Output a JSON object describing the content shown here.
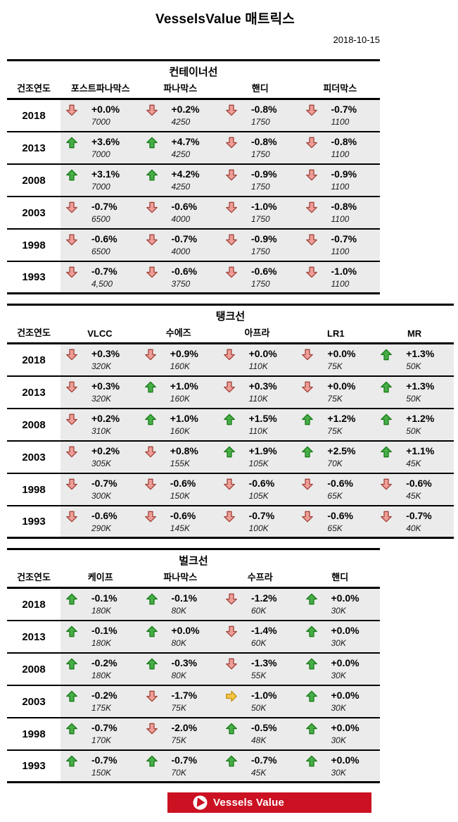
{
  "page": {
    "title": "VesselsValue 매트릭스",
    "date": "2018-10-15"
  },
  "labels": {
    "year_column": "건조연도"
  },
  "footer": {
    "brand": "Vessels Value"
  },
  "colors": {
    "row_bg": "#ebebeb",
    "brand_red": "#cb1122",
    "arrow_up": {
      "fill": "#47ad47",
      "stroke": "#187a18"
    },
    "arrow_down": {
      "fill": "#ee9e97",
      "stroke": "#a1423a"
    },
    "arrow_right": {
      "fill": "#f6c544",
      "stroke": "#c39016"
    }
  },
  "tables": [
    {
      "title": "컨테이너선",
      "wide": false,
      "columns": [
        "포스트파나막스",
        "파나막스",
        "핸디",
        "피더막스"
      ],
      "rows": [
        {
          "year": "2018",
          "cells": [
            [
              "down",
              "+0.0%",
              "7000"
            ],
            [
              "down",
              "+0.2%",
              "4250"
            ],
            [
              "down",
              "-0.8%",
              "1750"
            ],
            [
              "down",
              "-0.7%",
              "1100"
            ]
          ]
        },
        {
          "year": "2013",
          "cells": [
            [
              "up",
              "+3.6%",
              "7000"
            ],
            [
              "up",
              "+4.7%",
              "4250"
            ],
            [
              "down",
              "-0.8%",
              "1750"
            ],
            [
              "down",
              "-0.8%",
              "1100"
            ]
          ]
        },
        {
          "year": "2008",
          "cells": [
            [
              "up",
              "+3.1%",
              "7000"
            ],
            [
              "up",
              "+4.2%",
              "4250"
            ],
            [
              "down",
              "-0.9%",
              "1750"
            ],
            [
              "down",
              "-0.9%",
              "1100"
            ]
          ]
        },
        {
          "year": "2003",
          "cells": [
            [
              "down",
              "-0.7%",
              "6500"
            ],
            [
              "down",
              "-0.6%",
              "4000"
            ],
            [
              "down",
              "-1.0%",
              "1750"
            ],
            [
              "down",
              "-0.8%",
              "1100"
            ]
          ]
        },
        {
          "year": "1998",
          "cells": [
            [
              "down",
              "-0.6%",
              "6500"
            ],
            [
              "down",
              "-0.7%",
              "4000"
            ],
            [
              "down",
              "-0.9%",
              "1750"
            ],
            [
              "down",
              "-0.7%",
              "1100"
            ]
          ]
        },
        {
          "year": "1993",
          "cells": [
            [
              "down",
              "-0.7%",
              "4,500"
            ],
            [
              "down",
              "-0.6%",
              "3750"
            ],
            [
              "down",
              "-0.6%",
              "1750"
            ],
            [
              "down",
              "-1.0%",
              "1100"
            ]
          ]
        }
      ]
    },
    {
      "title": "탱크선",
      "wide": true,
      "columns": [
        "VLCC",
        "수에즈",
        "아프라",
        "LR1",
        "MR"
      ],
      "rows": [
        {
          "year": "2018",
          "cells": [
            [
              "down",
              "+0.3%",
              "320K"
            ],
            [
              "down",
              "+0.9%",
              "160K"
            ],
            [
              "down",
              "+0.0%",
              "110K"
            ],
            [
              "down",
              "+0.0%",
              "75K"
            ],
            [
              "up",
              "+1.3%",
              "50K"
            ]
          ]
        },
        {
          "year": "2013",
          "cells": [
            [
              "down",
              "+0.3%",
              "320K"
            ],
            [
              "up",
              "+1.0%",
              "160K"
            ],
            [
              "down",
              "+0.3%",
              "110K"
            ],
            [
              "down",
              "+0.0%",
              "75K"
            ],
            [
              "up",
              "+1.3%",
              "50K"
            ]
          ]
        },
        {
          "year": "2008",
          "cells": [
            [
              "down",
              "+0.2%",
              "310K"
            ],
            [
              "up",
              "+1.0%",
              "160K"
            ],
            [
              "up",
              "+1.5%",
              "110K"
            ],
            [
              "up",
              "+1.2%",
              "75K"
            ],
            [
              "up",
              "+1.2%",
              "50K"
            ]
          ]
        },
        {
          "year": "2003",
          "cells": [
            [
              "down",
              "+0.2%",
              "305K"
            ],
            [
              "down",
              "+0.8%",
              "155K"
            ],
            [
              "up",
              "+1.9%",
              "105K"
            ],
            [
              "up",
              "+2.5%",
              "70K"
            ],
            [
              "up",
              "+1.1%",
              "45K"
            ]
          ]
        },
        {
          "year": "1998",
          "cells": [
            [
              "down",
              "-0.7%",
              "300K"
            ],
            [
              "down",
              "-0.6%",
              "150K"
            ],
            [
              "down",
              "-0.6%",
              "105K"
            ],
            [
              "down",
              "-0.6%",
              "65K"
            ],
            [
              "down",
              "-0.6%",
              "45K"
            ]
          ]
        },
        {
          "year": "1993",
          "cells": [
            [
              "down",
              "-0.6%",
              "290K"
            ],
            [
              "down",
              "-0.6%",
              "145K"
            ],
            [
              "down",
              "-0.7%",
              "100K"
            ],
            [
              "down",
              "-0.6%",
              "65K"
            ],
            [
              "down",
              "-0.7%",
              "40K"
            ]
          ]
        }
      ]
    },
    {
      "title": "벌크선",
      "wide": false,
      "columns": [
        "케이프",
        "파나막스",
        "수프라",
        "핸디"
      ],
      "rows": [
        {
          "year": "2018",
          "cells": [
            [
              "up",
              "-0.1%",
              "180K"
            ],
            [
              "up",
              "-0.1%",
              "80K"
            ],
            [
              "down",
              "-1.2%",
              "60K"
            ],
            [
              "up",
              "+0.0%",
              "30K"
            ]
          ]
        },
        {
          "year": "2013",
          "cells": [
            [
              "up",
              "-0.1%",
              "180K"
            ],
            [
              "up",
              "+0.0%",
              "80K"
            ],
            [
              "down",
              "-1.4%",
              "60K"
            ],
            [
              "up",
              "+0.0%",
              "30K"
            ]
          ]
        },
        {
          "year": "2008",
          "cells": [
            [
              "up",
              "-0.2%",
              "180K"
            ],
            [
              "up",
              "-0.3%",
              "80K"
            ],
            [
              "down",
              "-1.3%",
              "55K"
            ],
            [
              "up",
              "+0.0%",
              "30K"
            ]
          ]
        },
        {
          "year": "2003",
          "cells": [
            [
              "up",
              "-0.2%",
              "175K"
            ],
            [
              "down",
              "-1.7%",
              "75K"
            ],
            [
              "right",
              "-1.0%",
              "50K"
            ],
            [
              "up",
              "+0.0%",
              "30K"
            ]
          ]
        },
        {
          "year": "1998",
          "cells": [
            [
              "up",
              "-0.7%",
              "170K"
            ],
            [
              "down",
              "-2.0%",
              "75K"
            ],
            [
              "up",
              "-0.5%",
              "48K"
            ],
            [
              "up",
              "+0.0%",
              "30K"
            ]
          ]
        },
        {
          "year": "1993",
          "cells": [
            [
              "up",
              "-0.7%",
              "150K"
            ],
            [
              "up",
              "-0.7%",
              "70K"
            ],
            [
              "up",
              "-0.7%",
              "45K"
            ],
            [
              "up",
              "+0.0%",
              "30K"
            ]
          ]
        }
      ]
    }
  ]
}
